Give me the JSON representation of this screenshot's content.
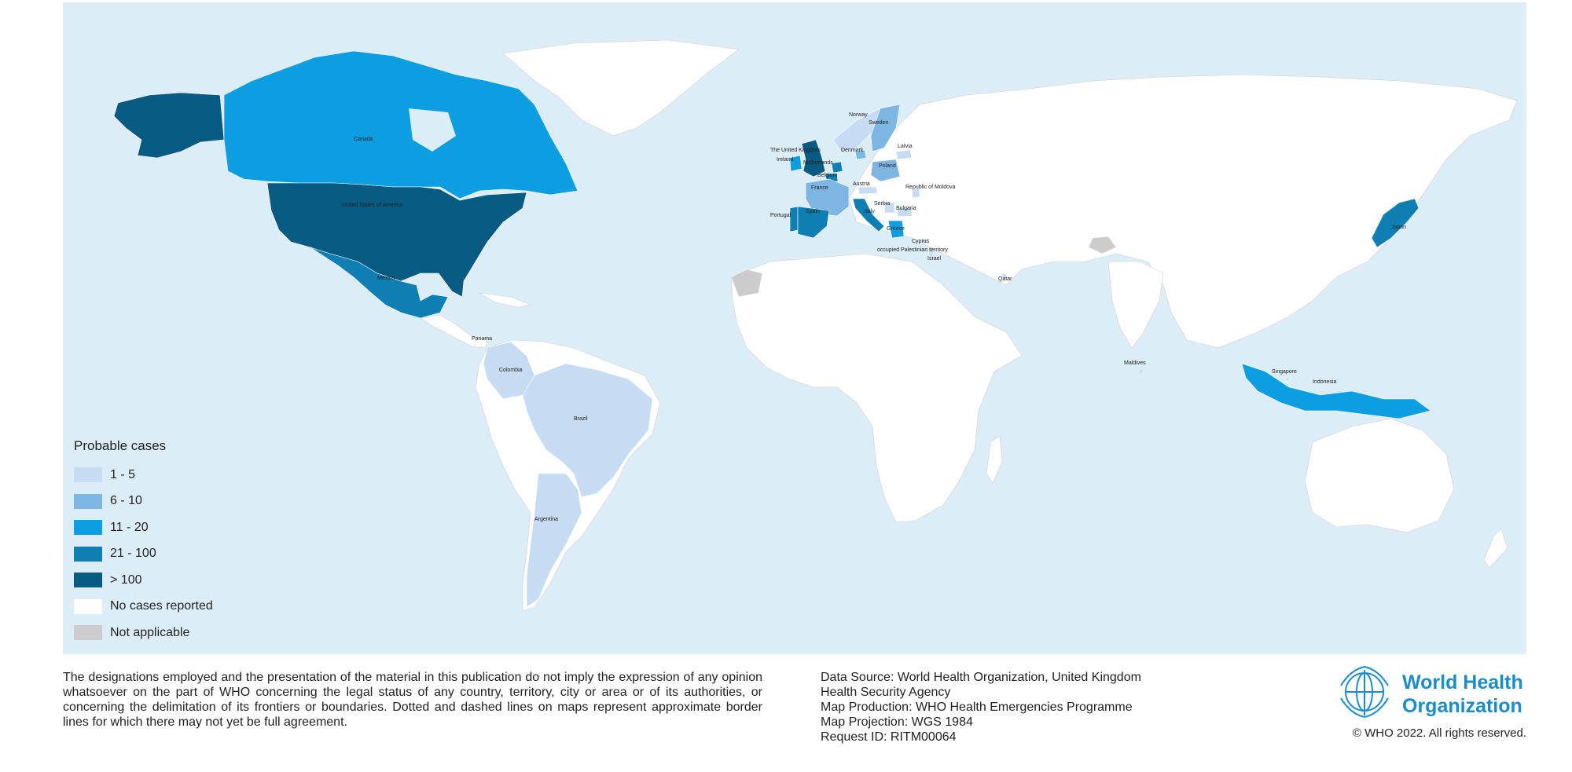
{
  "legend": {
    "title": "Probable cases",
    "items": [
      {
        "label": "1 - 5",
        "color": "#c6dcf2"
      },
      {
        "label": "6 - 10",
        "color": "#7db5e3"
      },
      {
        "label": "11 - 20",
        "color": "#0b9ee0"
      },
      {
        "label": "21 - 100",
        "color": "#0e7fb5"
      },
      {
        "label": "> 100",
        "color": "#075a82"
      },
      {
        "label": "No cases reported",
        "color": "#ffffff"
      },
      {
        "label": "Not applicable",
        "color": "#cccccc"
      }
    ]
  },
  "map_colors": {
    "ocean": "#dcedf8",
    "no_data_land": "#ffffff",
    "border": "#bdbdbd"
  },
  "countries": [
    {
      "name": "Canada",
      "class": "11 - 20",
      "label": "Canada"
    },
    {
      "name": "United States of America",
      "class": "> 100",
      "label": "United States of America"
    },
    {
      "name": "Mexico",
      "class": "21 - 100",
      "label": "Mexico"
    },
    {
      "name": "Panama",
      "class": "1 - 5",
      "label": "Panama"
    },
    {
      "name": "Colombia",
      "class": "1 - 5",
      "label": "Colombia"
    },
    {
      "name": "Brazil",
      "class": "1 - 5",
      "label": "Brazil"
    },
    {
      "name": "Argentina",
      "class": "1 - 5",
      "label": "Argentina"
    },
    {
      "name": "United Kingdom",
      "class": "> 100",
      "label": "The United Kingdom"
    },
    {
      "name": "Ireland",
      "class": "11 - 20",
      "label": "Ireland"
    },
    {
      "name": "Netherlands",
      "class": "21 - 100",
      "label": "Netherlands"
    },
    {
      "name": "Belgium",
      "class": "21 - 100",
      "label": "Belgium"
    },
    {
      "name": "France",
      "class": "6 - 10",
      "label": "France"
    },
    {
      "name": "Portugal",
      "class": "21 - 100",
      "label": "Portugal"
    },
    {
      "name": "Spain",
      "class": "21 - 100",
      "label": "Spain"
    },
    {
      "name": "Italy",
      "class": "21 - 100",
      "label": "Italy"
    },
    {
      "name": "Austria",
      "class": "1 - 5",
      "label": "Austria"
    },
    {
      "name": "Denmark",
      "class": "6 - 10",
      "label": "Denmark"
    },
    {
      "name": "Norway",
      "class": "1 - 5",
      "label": "Norway"
    },
    {
      "name": "Sweden",
      "class": "6 - 10",
      "label": "Sweden"
    },
    {
      "name": "Latvia",
      "class": "1 - 5",
      "label": "Latvia"
    },
    {
      "name": "Poland",
      "class": "6 - 10",
      "label": "Poland"
    },
    {
      "name": "Republic of Moldova",
      "class": "1 - 5",
      "label": "Republic of Moldova"
    },
    {
      "name": "Serbia",
      "class": "1 - 5",
      "label": "Serbia"
    },
    {
      "name": "Bulgaria",
      "class": "1 - 5",
      "label": "Bulgaria"
    },
    {
      "name": "Greece",
      "class": "11 - 20",
      "label": "Greece"
    },
    {
      "name": "Cyprus",
      "class": "1 - 5",
      "label": "Cyprus"
    },
    {
      "name": "occupied Palestinian territory",
      "class": "1 - 5",
      "label": "occupied Palestinian territory"
    },
    {
      "name": "Israel",
      "class": "1 - 5",
      "label": "Israel"
    },
    {
      "name": "Qatar",
      "class": "1 - 5",
      "label": "Qatar"
    },
    {
      "name": "Maldives",
      "class": "1 - 5",
      "label": "Maldives"
    },
    {
      "name": "Singapore",
      "class": "1 - 5",
      "label": "Singapore"
    },
    {
      "name": "Indonesia",
      "class": "11 - 20",
      "label": "Indonesia"
    },
    {
      "name": "Japan",
      "class": "21 - 100",
      "label": "Japan"
    }
  ],
  "footer": {
    "disclaimer": "The designations employed and the presentation of the material in this publication do not imply the expression of any opinion whatsoever on the part of WHO concerning the legal status of any country, territory, city or area or of its authorities, or concerning the delimitation of its frontiers or boundaries. Dotted and dashed lines on maps represent approximate border lines for which there may not yet be full agreement.",
    "source_lines": [
      "Data Source: World Health Organization, United Kingdom",
      "Health Security Agency",
      "Map Production: WHO Health Emergencies Programme",
      "Map Projection: WGS 1984",
      "Request ID: RITM00064"
    ],
    "logo_line1": "World Health",
    "logo_line2": "Organization",
    "copyright": "© WHO 2022. All rights reserved."
  }
}
